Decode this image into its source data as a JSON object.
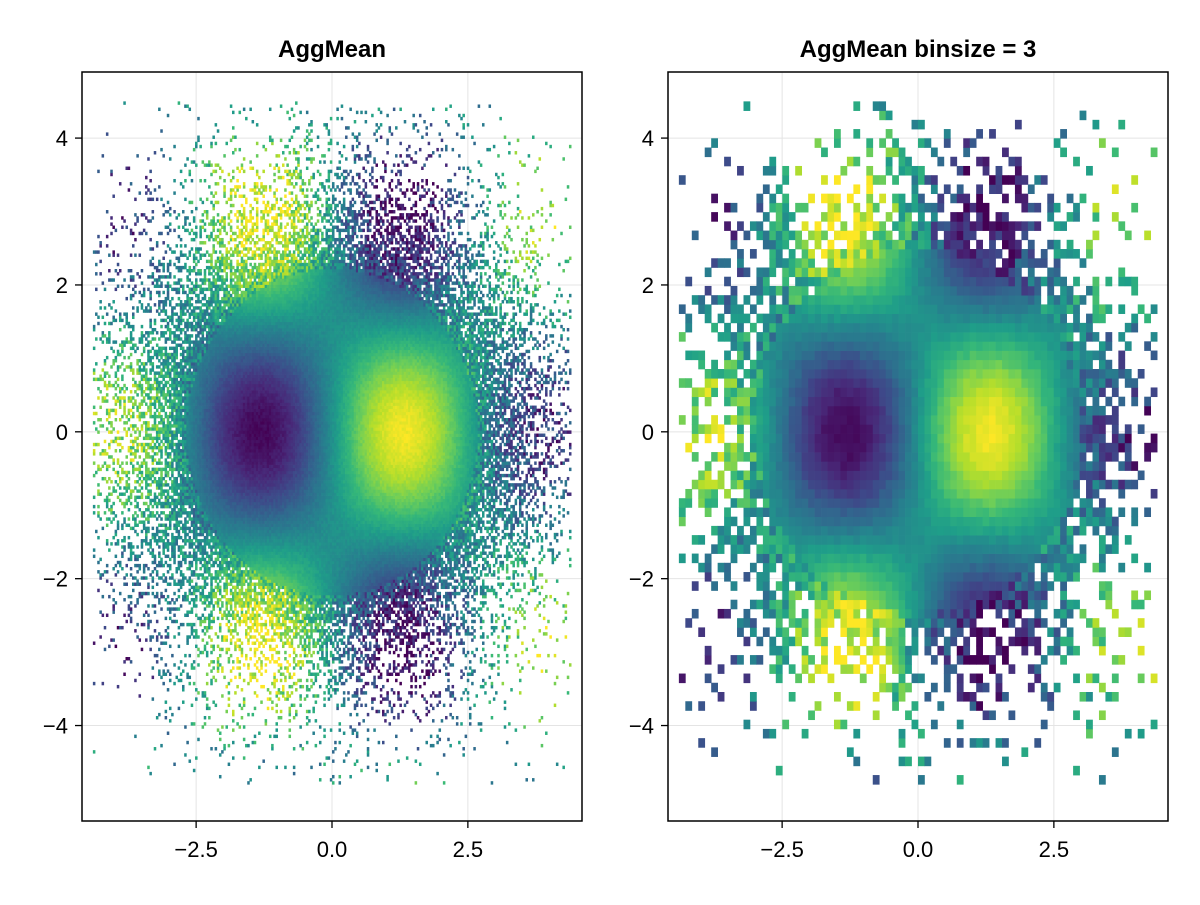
{
  "figure_title": "",
  "chart_data": [
    {
      "type": "heatmap",
      "title": "AggMean",
      "xlabel": "",
      "ylabel": "",
      "xlim": [
        -4.6,
        4.6
      ],
      "ylim": [
        -5.3,
        4.9
      ],
      "xticks": [
        -2.5,
        0.0,
        2.5
      ],
      "xtick_labels": [
        "−2.5",
        "0.0",
        "2.5"
      ],
      "yticks": [
        -4,
        -2,
        0,
        2,
        4
      ],
      "ytick_labels": [
        "−4",
        "−2",
        "0",
        "2",
        "4"
      ],
      "grid": true,
      "colormap": "viridis",
      "aggregation": "mean",
      "binsize": 1,
      "grid_cells": 220,
      "data_extent": {
        "x": [
          -4.4,
          4.4
        ],
        "y": [
          -4.8,
          4.5
        ]
      },
      "high_value_centers": [
        [
          0.0,
          1.6
        ],
        [
          -2.6,
          -1.3
        ],
        [
          2.6,
          -1.3
        ]
      ],
      "low_value_centers": [
        [
          0.0,
          -1.6
        ],
        [
          -2.6,
          1.3
        ],
        [
          2.6,
          1.3
        ]
      ]
    },
    {
      "type": "heatmap",
      "title": "AggMean binsize = 3",
      "xlabel": "",
      "ylabel": "",
      "xlim": [
        -4.6,
        4.6
      ],
      "ylim": [
        -5.3,
        4.9
      ],
      "xticks": [
        -2.5,
        0.0,
        2.5
      ],
      "xtick_labels": [
        "−2.5",
        "0.0",
        "2.5"
      ],
      "yticks": [
        -4,
        -2,
        0,
        2,
        4
      ],
      "ytick_labels": [
        "−4",
        "−2",
        "0",
        "2",
        "4"
      ],
      "grid": true,
      "colormap": "viridis",
      "aggregation": "mean",
      "binsize": 3,
      "grid_cells": 74,
      "data_extent": {
        "x": [
          -4.4,
          4.4
        ],
        "y": [
          -4.8,
          4.5
        ]
      },
      "high_value_centers": [
        [
          0.0,
          1.6
        ],
        [
          -2.6,
          -1.3
        ],
        [
          2.6,
          -1.3
        ]
      ],
      "low_value_centers": [
        [
          0.0,
          -1.6
        ],
        [
          -2.6,
          1.3
        ],
        [
          2.6,
          1.3
        ]
      ]
    }
  ],
  "colors": {
    "axis": "#000000",
    "grid": "#e4e4e4",
    "viridis_stops": [
      "#440154",
      "#482878",
      "#3e4989",
      "#31688e",
      "#26828e",
      "#1f9e89",
      "#35b779",
      "#6ece58",
      "#b5de2b",
      "#fde725"
    ]
  }
}
